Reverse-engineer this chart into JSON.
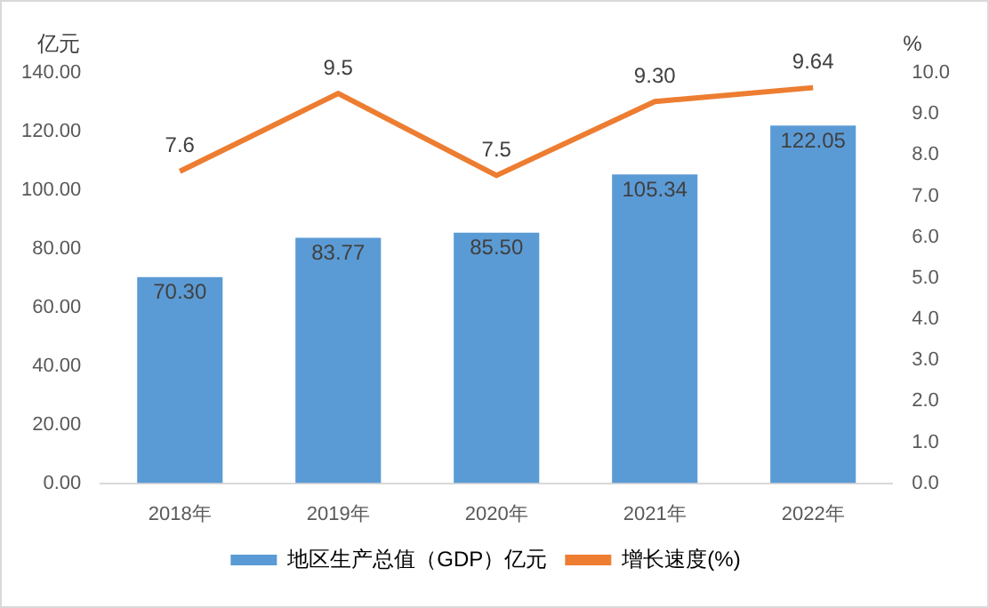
{
  "chart_data": {
    "type": "bar",
    "categories": [
      "2018年",
      "2019年",
      "2020年",
      "2021年",
      "2022年"
    ],
    "ylabel": "亿元",
    "y2label": "%",
    "series": [
      {
        "name": "地区生产总值（GDP）亿元",
        "color": "#5b9bd5",
        "values": [
          70.3,
          83.77,
          85.5,
          105.34,
          122.05
        ],
        "value_labels": [
          "70.30",
          "83.77",
          "85.50",
          "105.34",
          "122.05"
        ]
      },
      {
        "name": "增长速度(%)",
        "type": "line",
        "axis": "y2",
        "color": "#ed7d31",
        "values": [
          7.6,
          9.5,
          7.5,
          9.3,
          9.64
        ],
        "value_labels": [
          "7.6",
          "9.5",
          "7.5",
          "9.30",
          "9.64"
        ]
      }
    ],
    "ylim": [
      0,
      140
    ],
    "yticks": [
      {
        "value": 0,
        "label": "0.00"
      },
      {
        "value": 20,
        "label": "20.00"
      },
      {
        "value": 40,
        "label": "40.00"
      },
      {
        "value": 60,
        "label": "60.00"
      },
      {
        "value": 80,
        "label": "80.00"
      },
      {
        "value": 100,
        "label": "100.00"
      },
      {
        "value": 120,
        "label": "120.00"
      },
      {
        "value": 140,
        "label": "140.00"
      }
    ],
    "y2lim": [
      0,
      10
    ],
    "y2ticks": [
      {
        "value": 0,
        "label": "0.0"
      },
      {
        "value": 1,
        "label": "1.0"
      },
      {
        "value": 2,
        "label": "2.0"
      },
      {
        "value": 3,
        "label": "3.0"
      },
      {
        "value": 4,
        "label": "4.0"
      },
      {
        "value": 5,
        "label": "5.0"
      },
      {
        "value": 6,
        "label": "6.0"
      },
      {
        "value": 7,
        "label": "7.0"
      },
      {
        "value": 8,
        "label": "8.0"
      },
      {
        "value": 9,
        "label": "9.0"
      },
      {
        "value": 10,
        "label": "10.0"
      }
    ],
    "grid": false,
    "legend": "bottom",
    "marker": "none",
    "line_style": "solid"
  }
}
